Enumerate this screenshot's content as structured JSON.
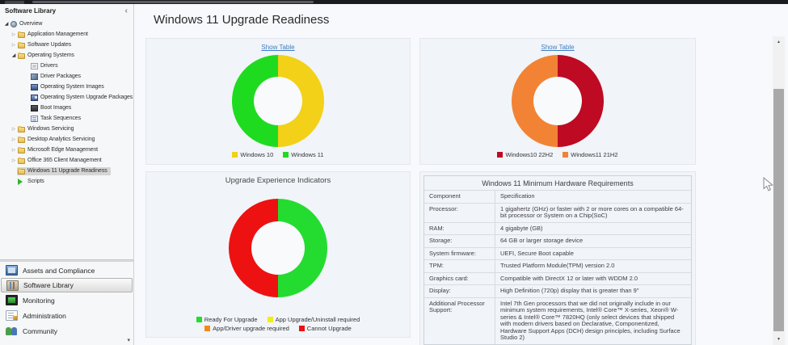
{
  "sidebar": {
    "title": "Software Library",
    "collapse_icon_glyph": "‹",
    "overflow_chevron_glyph": "▾",
    "expander_glyphs": {
      "expanded": "◢",
      "collapsed": "▷"
    },
    "tree": [
      {
        "label": "Overview",
        "level": 1,
        "icon": "overview",
        "expander": "expanded"
      },
      {
        "label": "Application Management",
        "level": 2,
        "icon": "folder",
        "expander": "collapsed"
      },
      {
        "label": "Software Updates",
        "level": 2,
        "icon": "folder",
        "expander": "collapsed"
      },
      {
        "label": "Operating Systems",
        "level": 2,
        "icon": "folder",
        "expander": "expanded"
      },
      {
        "label": "Drivers",
        "level": 3,
        "icon": "drivers"
      },
      {
        "label": "Driver Packages",
        "level": 3,
        "icon": "driver-packages"
      },
      {
        "label": "Operating System Images",
        "level": 3,
        "icon": "os-images"
      },
      {
        "label": "Operating System Upgrade Packages",
        "level": 3,
        "icon": "os-upgrade-packages"
      },
      {
        "label": "Boot Images",
        "level": 3,
        "icon": "boot-images"
      },
      {
        "label": "Task Sequences",
        "level": 3,
        "icon": "task-sequences"
      },
      {
        "label": "Windows Servicing",
        "level": 2,
        "icon": "folder",
        "expander": "collapsed"
      },
      {
        "label": "Desktop Analytics Servicing",
        "level": 2,
        "icon": "folder",
        "expander": "collapsed"
      },
      {
        "label": "Microsoft Edge Management",
        "level": 2,
        "icon": "folder",
        "expander": "collapsed"
      },
      {
        "label": "Office 365 Client Management",
        "level": 2,
        "icon": "folder",
        "expander": "collapsed"
      },
      {
        "label": "Windows 11 Upgrade Readiness",
        "level": 2,
        "icon": "folder",
        "selected": true
      },
      {
        "label": "Scripts",
        "level": 2,
        "icon": "scripts"
      }
    ],
    "nav": [
      {
        "label": "Assets and Compliance",
        "icon": "assets-and-compliance",
        "selected": false
      },
      {
        "label": "Software Library",
        "icon": "software-library",
        "selected": true
      },
      {
        "label": "Monitoring",
        "icon": "monitoring",
        "selected": false
      },
      {
        "label": "Administration",
        "icon": "administration",
        "selected": false
      },
      {
        "label": "Community",
        "icon": "community",
        "selected": false
      }
    ]
  },
  "main": {
    "title": "Windows 11 Upgrade Readiness"
  },
  "colors": {
    "show_table_link": "#3E7CC4",
    "selected_tree_highlight": "#D5D5D5"
  },
  "chart_data": [
    {
      "type": "pie",
      "variant": "donut",
      "panel": "top-left",
      "link_label": "Show Table",
      "legend_position": "bottom",
      "slices": [
        {
          "label": "Windows 10",
          "value": 50,
          "color": "#F2D118"
        },
        {
          "label": "Windows 11",
          "value": 50,
          "color": "#1FDB1F"
        }
      ]
    },
    {
      "type": "pie",
      "variant": "donut",
      "panel": "top-right",
      "link_label": "Show Table",
      "legend_position": "bottom",
      "slices": [
        {
          "label": "Windows10 22H2",
          "value": 50,
          "color": "#BE0A23"
        },
        {
          "label": "Windows11 21H2",
          "value": 50,
          "color": "#F28334"
        }
      ]
    },
    {
      "type": "pie",
      "variant": "donut",
      "panel": "bottom-left",
      "title": "Upgrade Experience Indicators",
      "legend_position": "bottom",
      "slices": [
        {
          "label": "Ready For Upgrade",
          "value": 50,
          "color": "#24DC30"
        },
        {
          "label": "App Upgrade/Uninstall required",
          "value": 0,
          "color": "#F2ED13"
        },
        {
          "label": "App/Driver upgrade required",
          "value": 0,
          "color": "#F28A1B"
        },
        {
          "label": "Cannot Upgrade",
          "value": 50,
          "color": "#EE1111"
        }
      ]
    }
  ],
  "hardware_table": {
    "title": "Windows 11 Minimum Hardware Requirements",
    "columns": [
      "Component",
      "Specification"
    ],
    "rows": [
      [
        "Processor:",
        "1 gigahertz (GHz) or faster with 2 or more cores on a compatible 64-bit processor or System on a Chip(SoC)"
      ],
      [
        "RAM:",
        "4 gigabyte (GB)"
      ],
      [
        "Storage:",
        "64 GB or larger storage device"
      ],
      [
        "System firmware:",
        "UEFI, Secure Boot capable"
      ],
      [
        "TPM:",
        "Trusted Platform Module(TPM) version 2.0"
      ],
      [
        "Graphics card:",
        "Compatible with DirectX 12 or later with WDDM 2.0"
      ],
      [
        "Display:",
        "High Definition (720p) display that is greater than 9\""
      ],
      [
        "Additional Processor Support:",
        "Intel 7th Gen processors that we did not originally include in our minimum system requirements, Intel® Core™ X-series, Xeon® W-series & Intel® Core™ 7820HQ (only select devices that shipped with modern drivers based on Declarative, Componentized, Hardware Support Apps (DCH) design principles, including Surface Studio 2)"
      ]
    ]
  },
  "scrollbar": {
    "up_glyph": "▲",
    "down_glyph": "▼"
  }
}
